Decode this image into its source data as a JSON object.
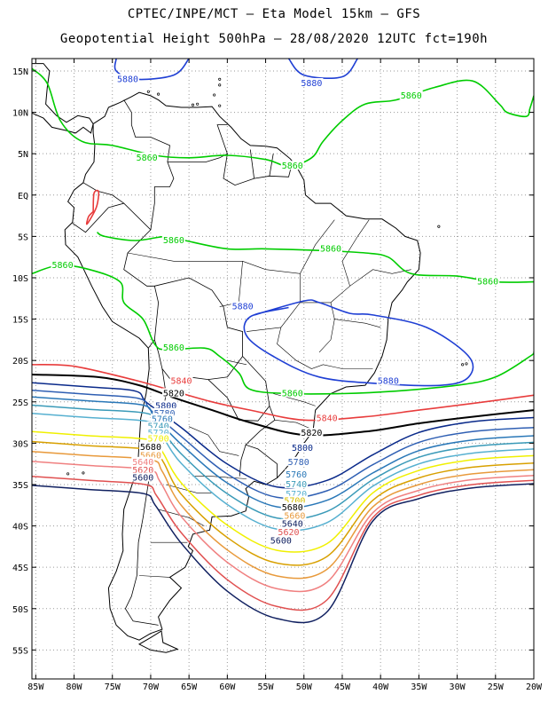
{
  "title_line1": "CPTEC/INPE/MCT –  Eta Model 15km – GFS",
  "title_line2": "Geopotential Height 500hPa – 28/08/2020 12UTC fct=190h",
  "latitude_ticks": [
    "15N",
    "10N",
    "5N",
    "EQ",
    "5S",
    "10S",
    "15S",
    "20S",
    "25S",
    "30S",
    "35S",
    "40S",
    "45S",
    "50S",
    "55S"
  ],
  "longitude_ticks": [
    "85W",
    "80W",
    "75W",
    "70W",
    "65W",
    "60W",
    "55W",
    "50W",
    "45W",
    "40W",
    "35W",
    "30W",
    "25W",
    "20W"
  ],
  "extent": {
    "lon": [
      -85.5,
      -20
    ],
    "lat": [
      -58.5,
      16.5
    ]
  },
  "contour_colors": {
    "5880": "#1f3fd4",
    "5860": "#00cc00",
    "5840": "#e83c3c",
    "5820": "#000000",
    "5800": "#0a2a8a",
    "5780": "#2f5fb3",
    "5760": "#2a78b8",
    "5740": "#3a9ab8",
    "5720": "#56b0d0",
    "5700": "#f0f000",
    "5680": "#d8a000",
    "5660": "#e89a3c",
    "5640": "#f08080",
    "5620": "#e05050",
    "5600": "#102060"
  },
  "contour_labels": [
    {
      "text": "5880",
      "lon": -73,
      "lat": 14,
      "color": "#1f3fd4"
    },
    {
      "text": "5880",
      "lon": -49,
      "lat": 13.5,
      "color": "#1f3fd4"
    },
    {
      "text": "5860",
      "lon": -36,
      "lat": 12,
      "color": "#00cc00"
    },
    {
      "text": "5860",
      "lon": -70.5,
      "lat": 4.5,
      "color": "#00cc00"
    },
    {
      "text": "5860",
      "lon": -51.5,
      "lat": 3.5,
      "color": "#00cc00"
    },
    {
      "text": "5860",
      "lon": -67,
      "lat": -5.5,
      "color": "#00cc00"
    },
    {
      "text": "5860",
      "lon": -46.5,
      "lat": -6.5,
      "color": "#00cc00"
    },
    {
      "text": "5860",
      "lon": -81.5,
      "lat": -8.5,
      "color": "#00cc00"
    },
    {
      "text": "5860",
      "lon": -26,
      "lat": -10.5,
      "color": "#00cc00"
    },
    {
      "text": "5880",
      "lon": -58,
      "lat": -13.5,
      "color": "#1f3fd4"
    },
    {
      "text": "5860",
      "lon": -67,
      "lat": -18.5,
      "color": "#00cc00"
    },
    {
      "text": "5860",
      "lon": -51.5,
      "lat": -24,
      "color": "#00cc00"
    },
    {
      "text": "5880",
      "lon": -39,
      "lat": -22.5,
      "color": "#1f3fd4"
    },
    {
      "text": "5840",
      "lon": -66,
      "lat": -22.5,
      "color": "#e83c3c"
    },
    {
      "text": "5820",
      "lon": -67,
      "lat": -24,
      "color": "#000000"
    },
    {
      "text": "5800",
      "lon": -68,
      "lat": -25.5,
      "color": "#0a2a8a"
    },
    {
      "text": "5780",
      "lon": -68.2,
      "lat": -26.4,
      "color": "#2f5fb3"
    },
    {
      "text": "5760",
      "lon": -68.5,
      "lat": -27.1,
      "color": "#2a78b8"
    },
    {
      "text": "5740",
      "lon": -69,
      "lat": -28,
      "color": "#3a9ab8"
    },
    {
      "text": "5720",
      "lon": -69,
      "lat": -28.8,
      "color": "#56b0d0"
    },
    {
      "text": "5700",
      "lon": -69,
      "lat": -29.5,
      "color": "#f0f000"
    },
    {
      "text": "5680",
      "lon": -70,
      "lat": -30.5,
      "color": "#000000"
    },
    {
      "text": "5660",
      "lon": -70,
      "lat": -31.5,
      "color": "#e89a3c"
    },
    {
      "text": "5640",
      "lon": -71,
      "lat": -32.3,
      "color": "#f08080"
    },
    {
      "text": "5620",
      "lon": -71,
      "lat": -33.3,
      "color": "#e05050"
    },
    {
      "text": "5600",
      "lon": -71,
      "lat": -34.2,
      "color": "#102060"
    },
    {
      "text": "5840",
      "lon": -47,
      "lat": -27,
      "color": "#e83c3c"
    },
    {
      "text": "5820",
      "lon": -49,
      "lat": -28.8,
      "color": "#000000"
    },
    {
      "text": "5800",
      "lon": -50.2,
      "lat": -30.6,
      "color": "#0a2a8a"
    },
    {
      "text": "5780",
      "lon": -50.7,
      "lat": -32.3,
      "color": "#2f5fb3"
    },
    {
      "text": "5760",
      "lon": -51,
      "lat": -33.8,
      "color": "#2a78b8"
    },
    {
      "text": "5740",
      "lon": -51,
      "lat": -35,
      "color": "#3a9ab8"
    },
    {
      "text": "5720",
      "lon": -51,
      "lat": -36.2,
      "color": "#56b0d0"
    },
    {
      "text": "5700",
      "lon": -51.2,
      "lat": -37,
      "color": "#d8c000"
    },
    {
      "text": "5680",
      "lon": -51.5,
      "lat": -37.8,
      "color": "#000000"
    },
    {
      "text": "5660",
      "lon": -51.2,
      "lat": -38.8,
      "color": "#e89a3c"
    },
    {
      "text": "5640",
      "lon": -51.5,
      "lat": -39.8,
      "color": "#102060"
    },
    {
      "text": "5620",
      "lon": -52,
      "lat": -40.8,
      "color": "#e05050"
    },
    {
      "text": "5600",
      "lon": -53,
      "lat": -41.8,
      "color": "#102060"
    }
  ]
}
